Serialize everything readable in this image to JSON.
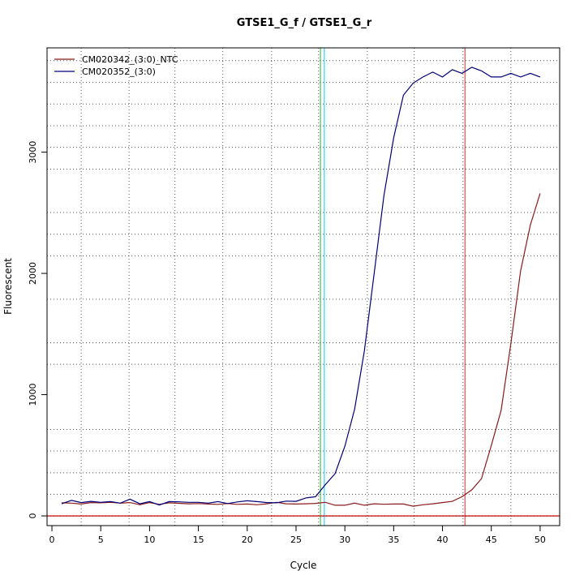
{
  "chart_data": {
    "type": "line",
    "title": "GTSE1_G_f / GTSE1_G_r",
    "xlabel": "Cycle",
    "ylabel": "Fluorescent",
    "xlim": [
      -0.5,
      52
    ],
    "ylim": [
      -80,
      3860
    ],
    "x_ticks": [
      0,
      5,
      10,
      15,
      20,
      25,
      30,
      35,
      40,
      45,
      50
    ],
    "y_ticks": [
      0,
      1000,
      2000,
      3000
    ],
    "grid": true,
    "grid_x": [
      3,
      7.9,
      12.6,
      17.5,
      22.5,
      27.3,
      32.3,
      37.1,
      42.1,
      47
    ],
    "grid_y": [
      -3,
      178,
      356,
      535,
      713,
      1250,
      1428,
      1787,
      2144,
      2323,
      2502,
      2860,
      3040,
      3217,
      3397,
      3575,
      3755
    ],
    "legend_position": "top-left",
    "vlines": [
      {
        "x": 27.9,
        "color": "#00ccff"
      },
      {
        "x": 27.5,
        "color": "#33aa33"
      },
      {
        "x": 42.3,
        "color": "#cc3333"
      }
    ],
    "hline": {
      "y": 0,
      "color": "#cc2222"
    },
    "series": [
      {
        "name": "CM020342_(3:0)_NTC",
        "color": "#8b1a1a",
        "x": [
          1,
          2,
          3,
          4,
          5,
          6,
          7,
          8,
          9,
          10,
          11,
          12,
          13,
          14,
          15,
          16,
          17,
          18,
          19,
          20,
          21,
          22,
          23,
          24,
          25,
          26,
          27,
          28,
          29,
          30,
          31,
          32,
          33,
          34,
          35,
          36,
          37,
          38,
          39,
          40,
          41,
          42,
          43,
          44,
          45,
          46,
          47,
          48,
          49,
          50
        ],
        "y": [
          108,
          105,
          98,
          110,
          108,
          112,
          105,
          110,
          92,
          110,
          95,
          108,
          104,
          100,
          102,
          98,
          95,
          102,
          95,
          98,
          92,
          100,
          112,
          100,
          98,
          100,
          103,
          112,
          88,
          88,
          105,
          88,
          100,
          96,
          98,
          98,
          80,
          92,
          100,
          110,
          120,
          158,
          215,
          308,
          580,
          870,
          1420,
          2020,
          2400,
          2660
        ]
      },
      {
        "name": "CM020352_(3:0)",
        "color": "#00007a",
        "x": [
          1,
          2,
          3,
          4,
          5,
          6,
          7,
          8,
          9,
          10,
          11,
          12,
          13,
          14,
          15,
          16,
          17,
          18,
          19,
          20,
          21,
          22,
          23,
          24,
          25,
          26,
          27,
          28,
          29,
          30,
          31,
          32,
          33,
          34,
          35,
          36,
          37,
          38,
          39,
          40,
          41,
          42,
          43,
          44,
          45,
          46,
          47,
          48,
          49,
          50
        ],
        "y": [
          100,
          128,
          110,
          120,
          112,
          118,
          105,
          138,
          100,
          118,
          90,
          118,
          116,
          112,
          112,
          105,
          118,
          102,
          115,
          125,
          118,
          110,
          108,
          122,
          120,
          148,
          158,
          258,
          348,
          575,
          880,
          1360,
          2000,
          2640,
          3120,
          3470,
          3570,
          3620,
          3660,
          3620,
          3680,
          3650,
          3700,
          3670,
          3620,
          3620,
          3650,
          3620,
          3650,
          3620
        ]
      }
    ]
  }
}
